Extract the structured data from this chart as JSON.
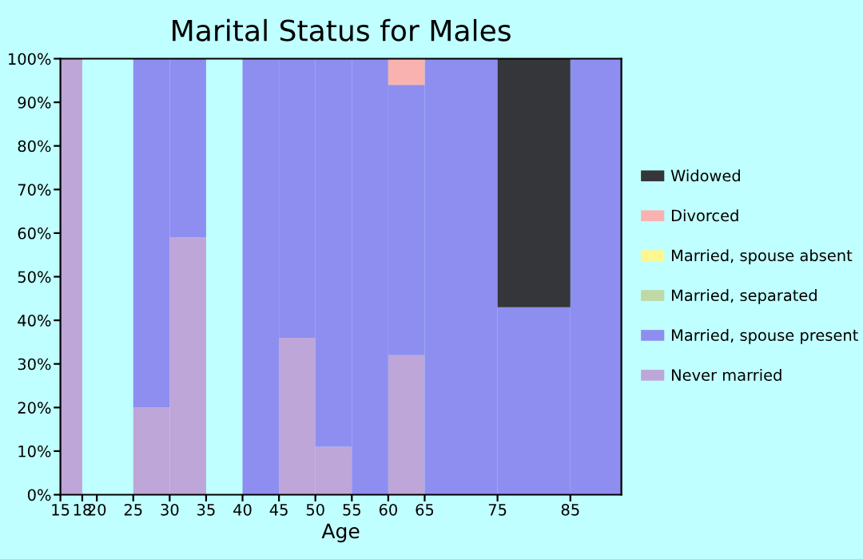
{
  "chart_data": {
    "type": "bar",
    "title": "Marital Status for Males",
    "xlabel": "Age",
    "x": [
      16.5,
      19,
      22.5,
      27.5,
      32.5,
      37.5,
      42.5,
      47.5,
      52.5,
      57.5,
      62.5,
      70,
      80,
      88.5
    ],
    "stacked": true,
    "series": [
      {
        "name": "Never married",
        "color": "#bea6d8",
        "values": [
          100,
          null,
          null,
          20,
          59,
          null,
          null,
          36,
          11,
          null,
          32,
          null,
          null,
          null
        ]
      },
      {
        "name": "Married, spouse present",
        "color": "#8e8ef0",
        "values": [
          null,
          null,
          null,
          80,
          41,
          null,
          100,
          64,
          89,
          100,
          62,
          100,
          43,
          100
        ]
      },
      {
        "name": "Married, separated",
        "color": "#c0d8a6",
        "values": [
          null,
          null,
          null,
          null,
          null,
          null,
          null,
          null,
          null,
          null,
          null,
          null,
          null,
          null
        ]
      },
      {
        "name": "Married, spouse absent",
        "color": "#fef68f",
        "values": [
          null,
          null,
          null,
          null,
          null,
          null,
          null,
          null,
          null,
          null,
          null,
          null,
          null,
          null
        ]
      },
      {
        "name": "Divorced",
        "color": "#f9b2b0",
        "values": [
          null,
          null,
          null,
          null,
          null,
          null,
          null,
          null,
          null,
          null,
          6,
          null,
          null,
          null
        ]
      },
      {
        "name": "Widowed",
        "color": "#35363a",
        "values": [
          null,
          null,
          null,
          null,
          null,
          null,
          null,
          null,
          null,
          null,
          null,
          null,
          57,
          null
        ]
      }
    ],
    "xlim": [
      15,
      92
    ],
    "xticks": [
      15,
      18,
      20,
      25,
      30,
      35,
      40,
      45,
      50,
      55,
      60,
      65,
      75,
      85
    ],
    "ylim": [
      0,
      100
    ],
    "yticks": [
      {
        "value": 0,
        "label": "0%"
      },
      {
        "value": 10,
        "label": "10%"
      },
      {
        "value": 20,
        "label": "20%"
      },
      {
        "value": 30,
        "label": "30%"
      },
      {
        "value": 40,
        "label": "40%"
      },
      {
        "value": 50,
        "label": "50%"
      },
      {
        "value": 60,
        "label": "60%"
      },
      {
        "value": 70,
        "label": "70%"
      },
      {
        "value": 80,
        "label": "80%"
      },
      {
        "value": 90,
        "label": "90%"
      },
      {
        "value": 100,
        "label": "100%"
      }
    ],
    "grid": false,
    "legend": "right"
  }
}
